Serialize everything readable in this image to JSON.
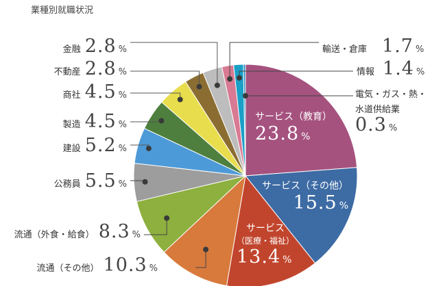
{
  "chart_data": {
    "type": "pie",
    "title": "業種別就職状況",
    "unit": "%",
    "start": "top",
    "direction": "clockwise",
    "slices": [
      {
        "label": "サービス（教育）",
        "value": 23.8,
        "color": "#a5527f"
      },
      {
        "label": "サービス（その他）",
        "value": 15.5,
        "color": "#3d6ba4"
      },
      {
        "label": "サービス（医療・福祉）",
        "value": 13.4,
        "color": "#c1452d"
      },
      {
        "label": "流通（その他）",
        "value": 10.3,
        "color": "#d87a3c"
      },
      {
        "label": "流通（外食・給食）",
        "value": 8.3,
        "color": "#8db03e"
      },
      {
        "label": "公務員",
        "value": 5.5,
        "color": "#9d9d9d"
      },
      {
        "label": "建設",
        "value": 5.2,
        "color": "#4d9ad8"
      },
      {
        "label": "製造",
        "value": 4.5,
        "color": "#4e7f3e"
      },
      {
        "label": "商社",
        "value": 4.5,
        "color": "#e8dd4c"
      },
      {
        "label": "不動産",
        "value": 2.8,
        "color": "#8b6d32"
      },
      {
        "label": "金融",
        "value": 2.8,
        "color": "#bdbdbd"
      },
      {
        "label": "輸送・倉庫",
        "value": 1.7,
        "color": "#d87a93"
      },
      {
        "label": "情報",
        "value": 1.4,
        "color": "#1a9fc7"
      },
      {
        "label": "電気・ガス・熱・水道供給業",
        "value": 0.3,
        "color": "#2a8fc0"
      }
    ],
    "display": {
      "edu_name": "サービス（教育）",
      "edu_val": "23.8",
      "svc_name": "サービス（その他）",
      "svc_val": "15.5",
      "med_name1": "サービス",
      "med_name2": "（医療・福祉）",
      "med_val": "13.4",
      "dist_name": "流通（その他）",
      "dist_val": "10.3",
      "food_name": "流通（外食・給食）",
      "food_val": "8.3",
      "civil_name": "公務員",
      "civil_val": "5.5",
      "const_name": "建設",
      "const_val": "5.2",
      "manu_name": "製造",
      "manu_val": "4.5",
      "trade_name": "商社",
      "trade_val": "4.5",
      "re_name": "不動産",
      "re_val": "2.8",
      "fin_name": "金融",
      "fin_val": "2.8",
      "trans_name": "輸送・倉庫",
      "trans_val": "1.7",
      "info_name": "情報",
      "info_val": "1.4",
      "elec_name1": "電気・ガス・熱・",
      "elec_name2": "水道供給業",
      "elec_val": "0.3",
      "pct": "%"
    }
  }
}
